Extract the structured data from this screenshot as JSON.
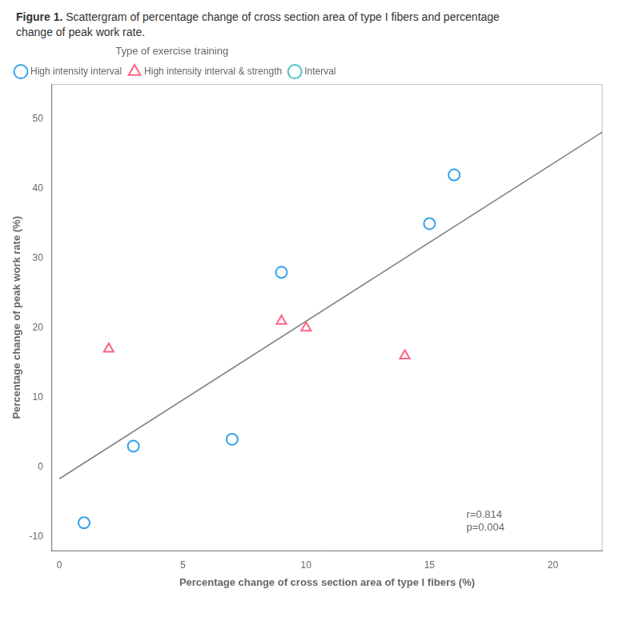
{
  "chart_data": {
    "type": "scatter",
    "title": "Figure 1.",
    "subtitle": [
      "Scattergram of percentage change of cross section area of type I fibers and percentage",
      "change of peak work rate."
    ],
    "xlabel": "Percentage change of cross section area of type I fibers (%)",
    "ylabel": "Percentage change of peak work rate (%)",
    "xlim": [
      -0.3,
      22
    ],
    "ylim": [
      -12,
      55
    ],
    "xticks": [
      0,
      5,
      10,
      15,
      20
    ],
    "yticks": [
      -10,
      0,
      10,
      20,
      30,
      40,
      50
    ],
    "grid": false,
    "legend": "upper left",
    "legend_title": "Type of exercise training",
    "series": [
      {
        "name": "High intensity interval",
        "marker": "circle",
        "x": [
          1,
          3,
          7,
          9,
          15,
          16
        ],
        "values": [
          -8,
          3,
          4,
          28,
          35,
          42
        ]
      },
      {
        "name": "High intensity interval & strength",
        "marker": "triangle",
        "x": [
          2,
          9,
          10,
          14
        ],
        "values": [
          17,
          21,
          20,
          16
        ]
      },
      {
        "name": "Interval",
        "marker": "circle",
        "x": [],
        "values": []
      }
    ],
    "regression_line": {
      "type": "line",
      "color": "#808080",
      "x": [
        0,
        22
      ],
      "values": [
        -1.6745,
        48.1441
      ]
    },
    "annotations": [
      {
        "text": "r=0.814\np=0.004",
        "x": 16.5,
        "y": -9.5
      }
    ]
  }
}
